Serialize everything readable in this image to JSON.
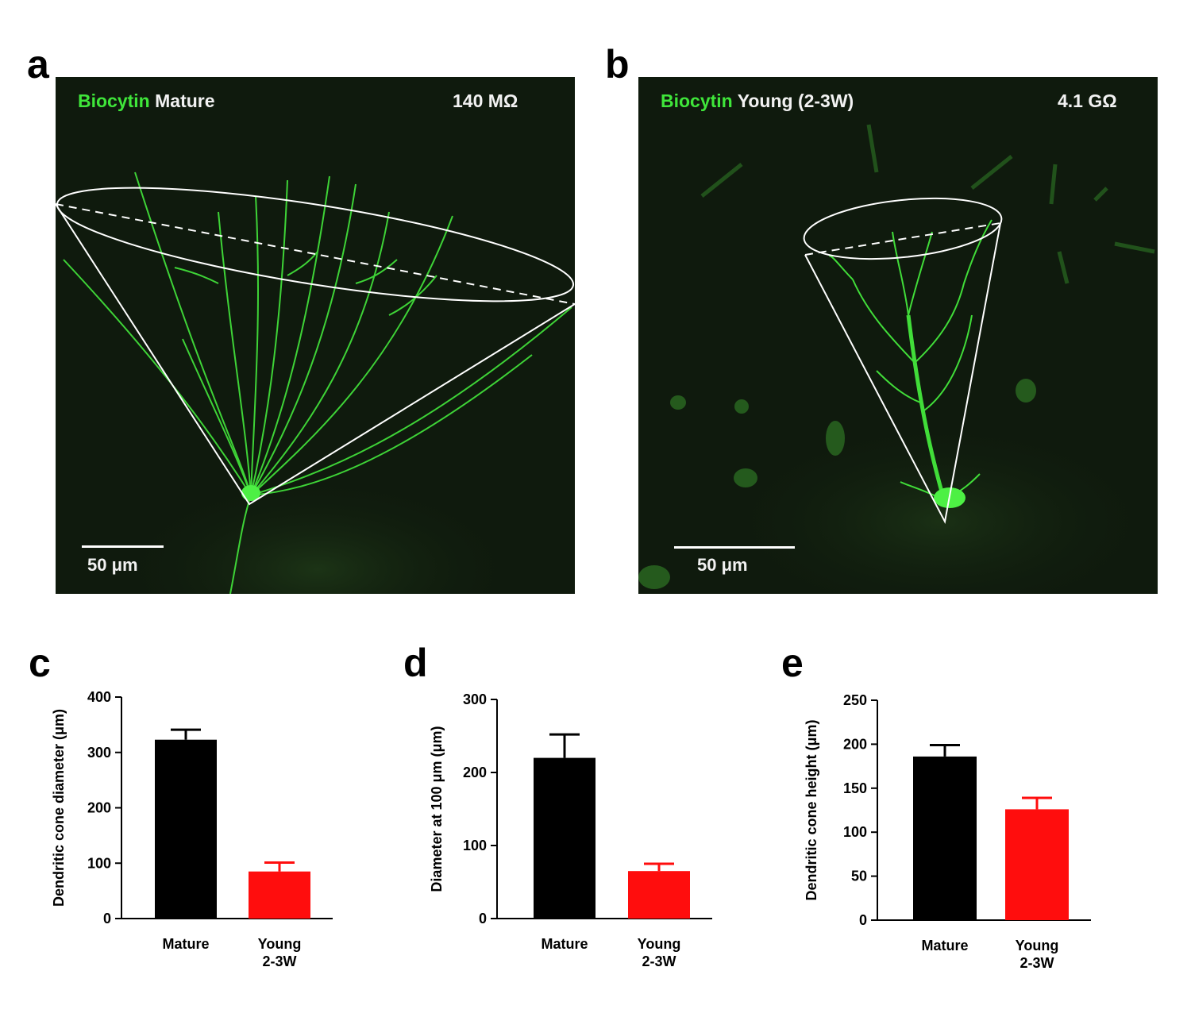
{
  "panels": {
    "a": {
      "letter": "a",
      "stain": "Biocytin",
      "group": "Mature",
      "resistance": "140 MΩ",
      "scale_bar": "50 μm",
      "colors": {
        "stain": "#3fe63a",
        "background": "#0f1a0d",
        "overlay": "#ffffff"
      }
    },
    "b": {
      "letter": "b",
      "stain": "Biocytin",
      "group": "Young (2-3W)",
      "resistance": "4.1 GΩ",
      "scale_bar": "50 μm",
      "colors": {
        "stain": "#3fe63a",
        "background": "#0f1a0d",
        "overlay": "#ffffff"
      }
    },
    "c": {
      "letter": "c"
    },
    "d": {
      "letter": "d"
    },
    "e": {
      "letter": "e"
    }
  },
  "chart_data": [
    {
      "id": "c",
      "type": "bar",
      "categories": [
        "Mature",
        "Young\n2-3W"
      ],
      "values": [
        323,
        85
      ],
      "errors": [
        18,
        16
      ],
      "colors": [
        "#000000",
        "#ff0d0d"
      ],
      "ylabel": "Dendritic cone diameter (μm)",
      "ylim": [
        0,
        400
      ],
      "yticks": [
        0,
        100,
        200,
        300,
        400
      ],
      "grid": false
    },
    {
      "id": "d",
      "type": "bar",
      "categories": [
        "Mature",
        "Young\n2-3W"
      ],
      "values": [
        220,
        65
      ],
      "errors": [
        32,
        10
      ],
      "colors": [
        "#000000",
        "#ff0d0d"
      ],
      "ylabel": "Diameter at 100 μm (μm)",
      "ylim": [
        0,
        300
      ],
      "yticks": [
        0,
        100,
        200,
        300
      ],
      "grid": false
    },
    {
      "id": "e",
      "type": "bar",
      "categories": [
        "Mature",
        "Young\n2-3W"
      ],
      "values": [
        186,
        126
      ],
      "errors": [
        13,
        13
      ],
      "colors": [
        "#000000",
        "#ff0d0d"
      ],
      "ylabel": "Dendritic cone height (μm)",
      "ylim": [
        0,
        250
      ],
      "yticks": [
        0,
        50,
        100,
        150,
        200,
        250
      ],
      "grid": false
    }
  ]
}
